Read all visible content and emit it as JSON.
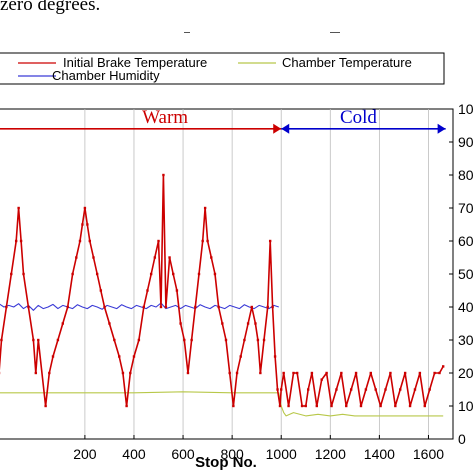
{
  "caption": {
    "text": "zero degrees."
  },
  "chart_data": {
    "type": "line",
    "title": "",
    "xlabel": "Stop No.",
    "ylabel": "",
    "xlim": [
      -150,
      1700
    ],
    "ylim": [
      0,
      100
    ],
    "x_ticks": [
      200,
      400,
      600,
      800,
      1000,
      1200,
      1400,
      1600
    ],
    "y_ticks": [
      0,
      10,
      20,
      30,
      40,
      50,
      60,
      70,
      80,
      90,
      100
    ],
    "grid": "vertical",
    "legend_position": "top",
    "regions": [
      {
        "label": "Warm",
        "x_start": -150,
        "x_end": 1000,
        "y": 94,
        "color": "#cc0000"
      },
      {
        "label": "Cold",
        "x_start": 1000,
        "x_end": 1670,
        "y": 94,
        "color": "#0000cc"
      }
    ],
    "colors": {
      "brake": "#cc0000",
      "chamber_temp": "#b8c84a",
      "humidity": "#3a3ad6"
    },
    "series": [
      {
        "name": "Initial Brake Temperature",
        "points": [
          [
            -150,
            20
          ],
          [
            -140,
            30
          ],
          [
            -120,
            40
          ],
          [
            -100,
            50
          ],
          [
            -80,
            60
          ],
          [
            -70,
            70
          ],
          [
            -60,
            60
          ],
          [
            -50,
            50
          ],
          [
            -30,
            40
          ],
          [
            -10,
            30
          ],
          [
            0,
            20
          ],
          [
            10,
            30
          ],
          [
            40,
            10
          ],
          [
            55,
            20
          ],
          [
            70,
            25
          ],
          [
            90,
            30
          ],
          [
            110,
            35
          ],
          [
            130,
            40
          ],
          [
            150,
            50
          ],
          [
            165,
            55
          ],
          [
            180,
            60
          ],
          [
            190,
            65
          ],
          [
            200,
            70
          ],
          [
            210,
            65
          ],
          [
            220,
            60
          ],
          [
            235,
            55
          ],
          [
            250,
            50
          ],
          [
            265,
            45
          ],
          [
            280,
            40
          ],
          [
            300,
            35
          ],
          [
            320,
            30
          ],
          [
            340,
            25
          ],
          [
            355,
            20
          ],
          [
            370,
            10
          ],
          [
            385,
            20
          ],
          [
            400,
            25
          ],
          [
            420,
            30
          ],
          [
            440,
            40
          ],
          [
            455,
            45
          ],
          [
            470,
            50
          ],
          [
            485,
            55
          ],
          [
            500,
            60
          ],
          [
            510,
            40
          ],
          [
            520,
            80
          ],
          [
            530,
            40
          ],
          [
            545,
            55
          ],
          [
            560,
            50
          ],
          [
            575,
            45
          ],
          [
            590,
            35
          ],
          [
            605,
            30
          ],
          [
            620,
            20
          ],
          [
            635,
            30
          ],
          [
            650,
            40
          ],
          [
            665,
            50
          ],
          [
            680,
            60
          ],
          [
            690,
            70
          ],
          [
            700,
            60
          ],
          [
            715,
            55
          ],
          [
            730,
            50
          ],
          [
            745,
            40
          ],
          [
            760,
            35
          ],
          [
            775,
            30
          ],
          [
            790,
            20
          ],
          [
            805,
            10
          ],
          [
            820,
            20
          ],
          [
            835,
            25
          ],
          [
            850,
            30
          ],
          [
            865,
            35
          ],
          [
            880,
            40
          ],
          [
            895,
            35
          ],
          [
            905,
            30
          ],
          [
            915,
            20
          ],
          [
            930,
            30
          ],
          [
            945,
            40
          ],
          [
            955,
            60
          ],
          [
            965,
            40
          ],
          [
            975,
            25
          ],
          [
            985,
            15
          ],
          [
            995,
            10
          ],
          [
            1000,
            15
          ],
          [
            1010,
            20
          ],
          [
            1030,
            10
          ],
          [
            1050,
            20
          ],
          [
            1065,
            20
          ],
          [
            1085,
            10
          ],
          [
            1100,
            10
          ],
          [
            1110,
            15
          ],
          [
            1125,
            20
          ],
          [
            1145,
            10
          ],
          [
            1165,
            18
          ],
          [
            1185,
            20
          ],
          [
            1205,
            10
          ],
          [
            1225,
            15
          ],
          [
            1245,
            20
          ],
          [
            1265,
            10
          ],
          [
            1285,
            15
          ],
          [
            1305,
            20
          ],
          [
            1325,
            10
          ],
          [
            1345,
            15
          ],
          [
            1365,
            20
          ],
          [
            1385,
            15
          ],
          [
            1405,
            10
          ],
          [
            1425,
            15
          ],
          [
            1445,
            20
          ],
          [
            1465,
            10
          ],
          [
            1485,
            15
          ],
          [
            1505,
            20
          ],
          [
            1525,
            10
          ],
          [
            1545,
            15
          ],
          [
            1565,
            20
          ],
          [
            1585,
            10
          ],
          [
            1605,
            15
          ],
          [
            1625,
            20
          ],
          [
            1645,
            20
          ],
          [
            1660,
            22
          ]
        ]
      },
      {
        "name": "Chamber Temperature",
        "points": [
          [
            -150,
            14
          ],
          [
            200,
            14
          ],
          [
            400,
            14
          ],
          [
            600,
            14.3
          ],
          [
            800,
            14
          ],
          [
            990,
            14
          ],
          [
            1000,
            10
          ],
          [
            1010,
            8
          ],
          [
            1020,
            7
          ],
          [
            1050,
            8
          ],
          [
            1100,
            7
          ],
          [
            1150,
            7.5
          ],
          [
            1200,
            7
          ],
          [
            1250,
            7.5
          ],
          [
            1300,
            7
          ],
          [
            1400,
            7
          ],
          [
            1500,
            7
          ],
          [
            1600,
            7
          ],
          [
            1660,
            7
          ]
        ]
      },
      {
        "name": "Chamber Humidity",
        "points": [
          [
            -150,
            41
          ],
          [
            -130,
            40
          ],
          [
            -110,
            40.5
          ],
          [
            -90,
            40
          ],
          [
            -70,
            41
          ],
          [
            -50,
            39.5
          ],
          [
            -30,
            40.5
          ],
          [
            -10,
            39
          ],
          [
            10,
            40.5
          ],
          [
            30,
            39.5
          ],
          [
            50,
            40
          ],
          [
            70,
            40.8
          ],
          [
            90,
            39.5
          ],
          [
            110,
            40.5
          ],
          [
            130,
            40
          ],
          [
            150,
            39.5
          ],
          [
            170,
            40.7
          ],
          [
            190,
            40
          ],
          [
            210,
            39.5
          ],
          [
            230,
            40.5
          ],
          [
            250,
            40
          ],
          [
            270,
            39.3
          ],
          [
            290,
            40.5
          ],
          [
            310,
            40
          ],
          [
            330,
            39.5
          ],
          [
            350,
            40.7
          ],
          [
            370,
            40
          ],
          [
            390,
            39.5
          ],
          [
            410,
            40.5
          ],
          [
            430,
            40
          ],
          [
            450,
            39.5
          ],
          [
            470,
            40.5
          ],
          [
            490,
            40
          ],
          [
            510,
            41.2
          ],
          [
            530,
            39.5
          ],
          [
            550,
            40
          ],
          [
            570,
            40.5
          ],
          [
            590,
            39.5
          ],
          [
            610,
            40.5
          ],
          [
            630,
            40
          ],
          [
            650,
            39.5
          ],
          [
            670,
            40.7
          ],
          [
            690,
            40
          ],
          [
            710,
            39.5
          ],
          [
            730,
            40.5
          ],
          [
            750,
            40
          ],
          [
            770,
            39.5
          ],
          [
            790,
            40.5
          ],
          [
            810,
            40
          ],
          [
            830,
            39.5
          ],
          [
            850,
            40.7
          ],
          [
            870,
            40
          ],
          [
            890,
            39.5
          ],
          [
            910,
            40.5
          ],
          [
            930,
            40
          ],
          [
            950,
            39.5
          ],
          [
            970,
            40.5
          ],
          [
            990,
            40
          ]
        ]
      }
    ]
  }
}
